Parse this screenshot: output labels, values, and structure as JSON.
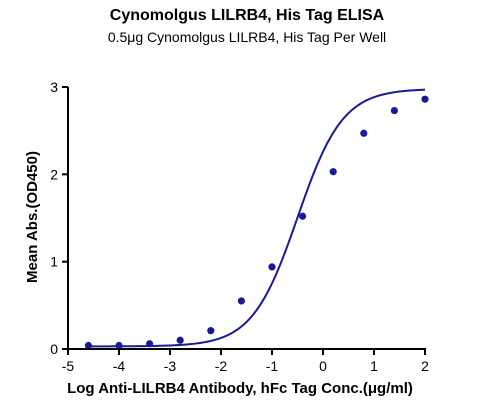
{
  "chart_data": {
    "type": "scatter",
    "title": "Cynomolgus LILRB4, His Tag ELISA",
    "subtitle": "0.5μg Cynomolgus LILRB4, His Tag Per Well",
    "xlabel": "Log Anti-LILRB4 Antibody, hFc Tag Conc.(μg/ml)",
    "ylabel": "Mean Abs.(OD450)",
    "xlim": [
      -5,
      2
    ],
    "ylim": [
      0,
      3
    ],
    "x_ticks": [
      -5,
      -4,
      -3,
      -2,
      -1,
      0,
      1,
      2
    ],
    "y_ticks": [
      0,
      1,
      2,
      3
    ],
    "x_tick_labels": [
      "-5",
      "-4",
      "-3",
      "-2",
      "-1",
      "0",
      "1",
      "2"
    ],
    "y_tick_labels": [
      "0",
      "1",
      "2",
      "3"
    ],
    "grid": false,
    "legend": "none",
    "series": [
      {
        "points": {
          "x": [
            -4.6,
            -4.0,
            -3.4,
            -2.8,
            -2.2,
            -1.6,
            -1.0,
            -0.4,
            0.2,
            0.8,
            1.4,
            2.0
          ],
          "y": [
            0.04,
            0.04,
            0.06,
            0.1,
            0.21,
            0.55,
            0.94,
            1.52,
            2.03,
            2.47,
            2.73,
            2.86
          ]
        },
        "fit_curve": {
          "model": "4PL",
          "bottom": 0.03,
          "top": 2.98,
          "log_ec50": -0.5,
          "hill_slope": 0.98
        },
        "color": "#1a1a99"
      }
    ]
  }
}
